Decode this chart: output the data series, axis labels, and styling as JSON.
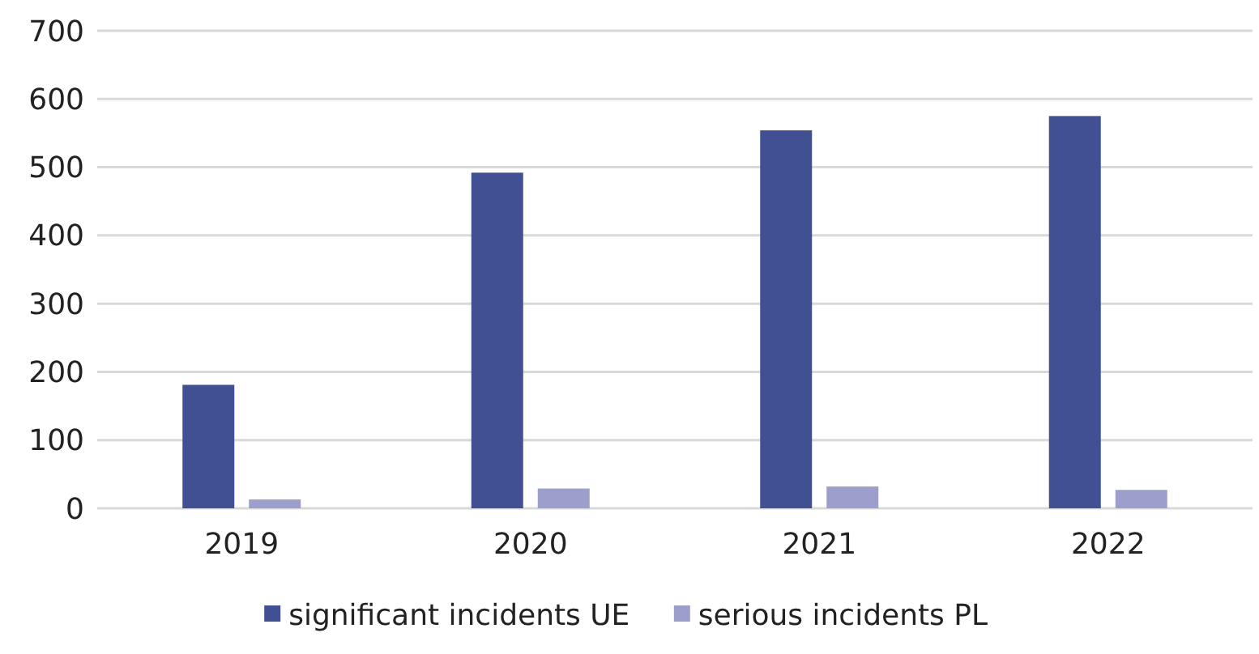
{
  "chart_data": {
    "type": "bar",
    "categories": [
      "2019",
      "2020",
      "2021",
      "2022"
    ],
    "series": [
      {
        "name": "significant incidents UE",
        "color": "#405093",
        "values": [
          181,
          492,
          554,
          575
        ]
      },
      {
        "name": "serious incidents PL",
        "color": "#9c9fcb",
        "values": [
          13,
          29,
          32,
          27
        ]
      }
    ],
    "ylim": [
      0,
      700
    ],
    "yticks": [
      0,
      100,
      200,
      300,
      400,
      500,
      600,
      700
    ],
    "grid": "y",
    "legend": "bottom"
  }
}
